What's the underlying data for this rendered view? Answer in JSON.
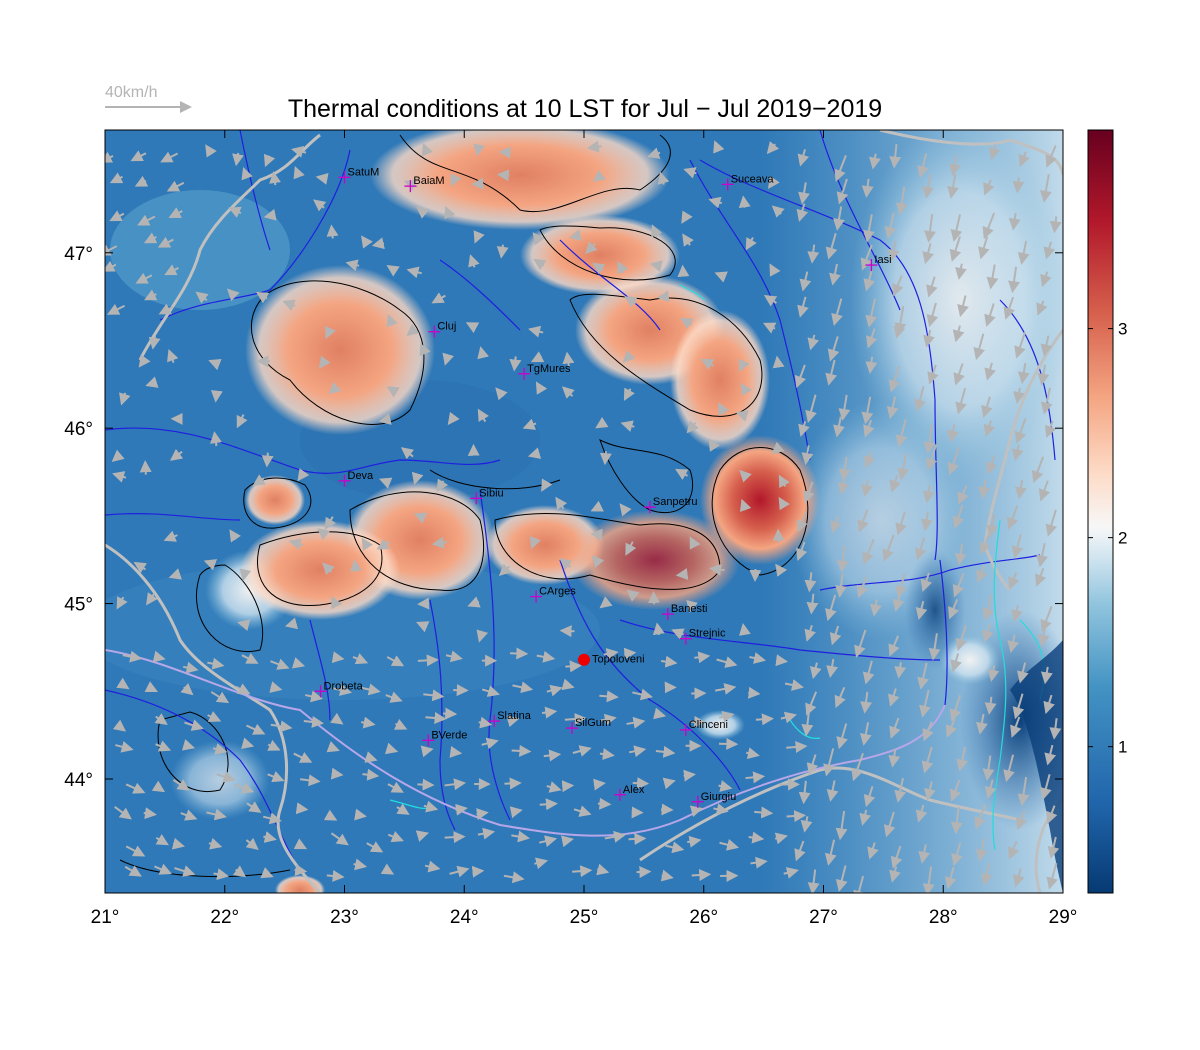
{
  "title": "Thermal conditions at 10 LST for Jul − Jul  2019−2019",
  "wind_legend": {
    "label": "40km/h",
    "color": "#b4b4b4"
  },
  "map": {
    "lon_range": [
      21,
      29
    ],
    "lat_range": [
      43.35,
      47.7
    ],
    "x_ticks": [
      "21°",
      "22°",
      "23°",
      "24°",
      "25°",
      "26°",
      "27°",
      "28°",
      "29°"
    ],
    "y_ticks": [
      "44°",
      "45°",
      "46°",
      "47°"
    ],
    "cities": [
      {
        "name": "SatuM",
        "lon": 23.0,
        "lat": 47.43
      },
      {
        "name": "BaiaM",
        "lon": 23.55,
        "lat": 47.38
      },
      {
        "name": "Suceava",
        "lon": 26.2,
        "lat": 47.39
      },
      {
        "name": "Iasi",
        "lon": 27.4,
        "lat": 46.93
      },
      {
        "name": "Cluj",
        "lon": 23.75,
        "lat": 46.55
      },
      {
        "name": "TgMures",
        "lon": 24.5,
        "lat": 46.31
      },
      {
        "name": "Deva",
        "lon": 23.0,
        "lat": 45.7
      },
      {
        "name": "Sibiu",
        "lon": 24.1,
        "lat": 45.6
      },
      {
        "name": "Sanpetru",
        "lon": 25.55,
        "lat": 45.55
      },
      {
        "name": "CArges",
        "lon": 24.6,
        "lat": 45.04
      },
      {
        "name": "Banesti",
        "lon": 25.7,
        "lat": 44.94
      },
      {
        "name": "Strejnic",
        "lon": 25.85,
        "lat": 44.8
      },
      {
        "name": "Drobeta",
        "lon": 22.8,
        "lat": 44.5
      },
      {
        "name": "Slatina",
        "lon": 24.25,
        "lat": 44.33
      },
      {
        "name": "SilGum",
        "lon": 24.9,
        "lat": 44.29
      },
      {
        "name": "Clinceni",
        "lon": 25.85,
        "lat": 44.28
      },
      {
        "name": "BVerde",
        "lon": 23.7,
        "lat": 44.22
      },
      {
        "name": "Alex",
        "lon": 25.3,
        "lat": 43.91
      },
      {
        "name": "Giurgiu",
        "lon": 25.95,
        "lat": 43.87
      }
    ],
    "highlight_station": {
      "name": "Topoloveni",
      "lon": 25.0,
      "lat": 44.68,
      "color": "#ee0000"
    },
    "city_marker_color": "#cc00cc"
  },
  "colorbar": {
    "ticks": [
      "1",
      "2",
      "3"
    ],
    "tick_values": [
      1,
      2,
      3
    ],
    "range": [
      0.3,
      3.95
    ],
    "colors": [
      "#063a73",
      "#2166ac",
      "#4393c3",
      "#92c5de",
      "#d1e5f0",
      "#f7f7f7",
      "#fddbc7",
      "#f4a582",
      "#d6604d",
      "#b2182b",
      "#67001f"
    ]
  }
}
